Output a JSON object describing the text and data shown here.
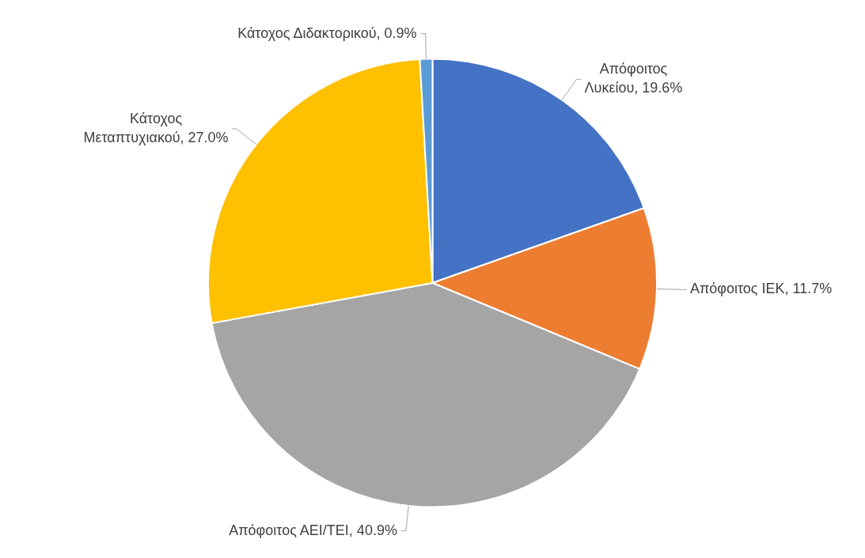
{
  "chart_data": {
    "type": "pie",
    "categories": [
      "Απόφοιτος Λυκείου",
      "Απόφοιτος ΙΕΚ",
      "Απόφοιτος ΑΕΙ/ΤΕΙ",
      "Κάτοχος Μεταπτυχιακού",
      "Κάτοχος Διδακτορικού"
    ],
    "values": [
      19.6,
      11.7,
      40.9,
      27.0,
      0.9
    ],
    "value_labels": [
      "19.6%",
      "11.7%",
      "40.9%",
      "27.0%",
      "0.9%"
    ],
    "colors": [
      "#4472c4",
      "#ed7d31",
      "#a5a5a5",
      "#ffc000",
      "#5b9bd5"
    ],
    "legend": false
  }
}
